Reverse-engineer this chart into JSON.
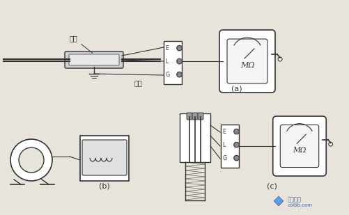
{
  "bg_color": "#e8e4dc",
  "line_color": "#333333",
  "label_gangguan": "钢管",
  "label_daoxian": "导线",
  "label_a": "(a)",
  "label_b": "(b)",
  "label_c": "(c)",
  "label_E": "E",
  "label_L": "L",
  "label_G": "G",
  "label_MOmega": "MΩ",
  "watermark_text1": "土木在线",
  "watermark_text2": "coibb.com",
  "watermark_color": "#2255aa",
  "watermark_diamond_color": "#4488dd"
}
